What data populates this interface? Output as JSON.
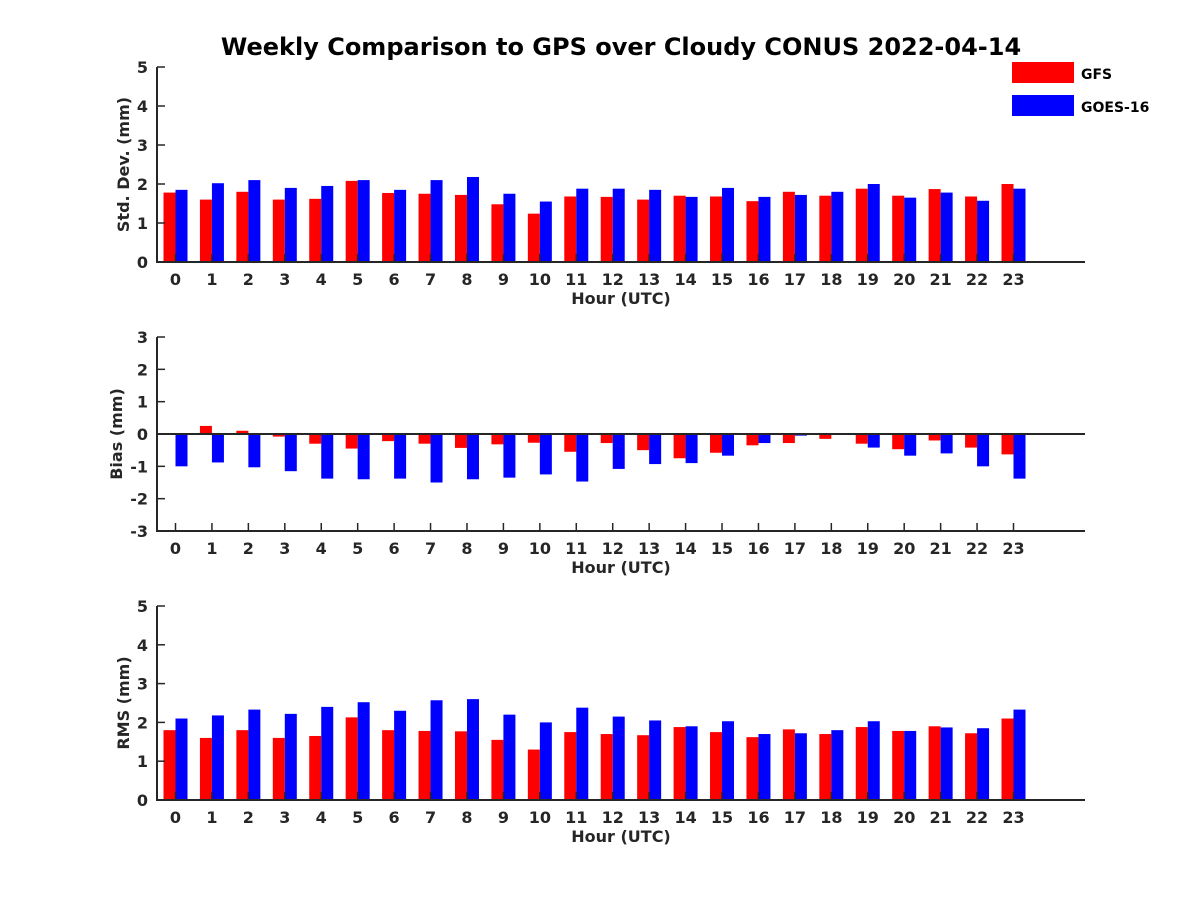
{
  "chart_data": {
    "title": "Weekly Comparison to GPS over Cloudy CONUS 2022-04-14",
    "legend": {
      "placement": "top-right",
      "entries": [
        {
          "name": "GFS",
          "color": "#ff0000"
        },
        {
          "name": "GOES-16",
          "color": "#0000ff"
        }
      ]
    },
    "panels": [
      {
        "type": "bar",
        "xlabel": "Hour (UTC)",
        "ylabel": "Std. Dev. (mm)",
        "ylim": [
          0,
          5
        ],
        "yticks": [
          0,
          1,
          2,
          3,
          4,
          5
        ],
        "grid": false,
        "categories": [
          "0",
          "1",
          "2",
          "3",
          "4",
          "5",
          "6",
          "7",
          "8",
          "9",
          "10",
          "11",
          "12",
          "13",
          "14",
          "15",
          "16",
          "17",
          "18",
          "19",
          "20",
          "21",
          "22",
          "23"
        ],
        "series": [
          {
            "name": "GFS",
            "color": "#ff0000",
            "values": [
              1.78,
              1.6,
              1.8,
              1.6,
              1.62,
              2.08,
              1.77,
              1.75,
              1.72,
              1.48,
              1.24,
              1.68,
              1.67,
              1.6,
              1.7,
              1.68,
              1.56,
              1.8,
              1.7,
              1.88,
              1.7,
              1.87,
              1.68,
              2.0
            ]
          },
          {
            "name": "GOES-16",
            "color": "#0000ff",
            "values": [
              1.85,
              2.02,
              2.1,
              1.9,
              1.95,
              2.1,
              1.85,
              2.1,
              2.18,
              1.75,
              1.55,
              1.88,
              1.88,
              1.85,
              1.67,
              1.9,
              1.67,
              1.72,
              1.8,
              2.0,
              1.65,
              1.78,
              1.57,
              1.88
            ]
          }
        ]
      },
      {
        "type": "bar",
        "xlabel": "Hour (UTC)",
        "ylabel": "Bias (mm)",
        "ylim": [
          -3,
          3
        ],
        "yticks": [
          -3,
          -2,
          -1,
          0,
          1,
          2,
          3
        ],
        "grid": false,
        "categories": [
          "0",
          "1",
          "2",
          "3",
          "4",
          "5",
          "6",
          "7",
          "8",
          "9",
          "10",
          "11",
          "12",
          "13",
          "14",
          "15",
          "16",
          "17",
          "18",
          "19",
          "20",
          "21",
          "22",
          "23"
        ],
        "series": [
          {
            "name": "GFS",
            "color": "#ff0000",
            "values": [
              0.0,
              0.25,
              0.1,
              -0.08,
              -0.3,
              -0.45,
              -0.22,
              -0.3,
              -0.43,
              -0.32,
              -0.27,
              -0.55,
              -0.28,
              -0.5,
              -0.75,
              -0.58,
              -0.35,
              -0.28,
              -0.15,
              -0.3,
              -0.47,
              -0.2,
              -0.42,
              -0.63
            ]
          },
          {
            "name": "GOES-16",
            "color": "#0000ff",
            "values": [
              -1.0,
              -0.88,
              -1.03,
              -1.15,
              -1.38,
              -1.4,
              -1.38,
              -1.5,
              -1.4,
              -1.35,
              -1.25,
              -1.47,
              -1.08,
              -0.93,
              -0.9,
              -0.67,
              -0.28,
              -0.05,
              0.0,
              -0.42,
              -0.67,
              -0.6,
              -1.0,
              -1.38
            ]
          }
        ]
      },
      {
        "type": "bar",
        "xlabel": "Hour (UTC)",
        "ylabel": "RMS (mm)",
        "ylim": [
          0,
          5
        ],
        "yticks": [
          0,
          1,
          2,
          3,
          4,
          5
        ],
        "grid": false,
        "categories": [
          "0",
          "1",
          "2",
          "3",
          "4",
          "5",
          "6",
          "7",
          "8",
          "9",
          "10",
          "11",
          "12",
          "13",
          "14",
          "15",
          "16",
          "17",
          "18",
          "19",
          "20",
          "21",
          "22",
          "23"
        ],
        "series": [
          {
            "name": "GFS",
            "color": "#ff0000",
            "values": [
              1.8,
              1.6,
              1.8,
              1.6,
              1.65,
              2.13,
              1.8,
              1.78,
              1.77,
              1.55,
              1.3,
              1.75,
              1.7,
              1.67,
              1.88,
              1.75,
              1.62,
              1.82,
              1.7,
              1.88,
              1.78,
              1.9,
              1.72,
              2.1
            ]
          },
          {
            "name": "GOES-16",
            "color": "#0000ff",
            "values": [
              2.1,
              2.18,
              2.33,
              2.22,
              2.4,
              2.52,
              2.3,
              2.57,
              2.6,
              2.2,
              2.0,
              2.38,
              2.15,
              2.05,
              1.9,
              2.03,
              1.7,
              1.72,
              1.8,
              2.03,
              1.78,
              1.87,
              1.85,
              2.33
            ]
          }
        ]
      }
    ]
  }
}
